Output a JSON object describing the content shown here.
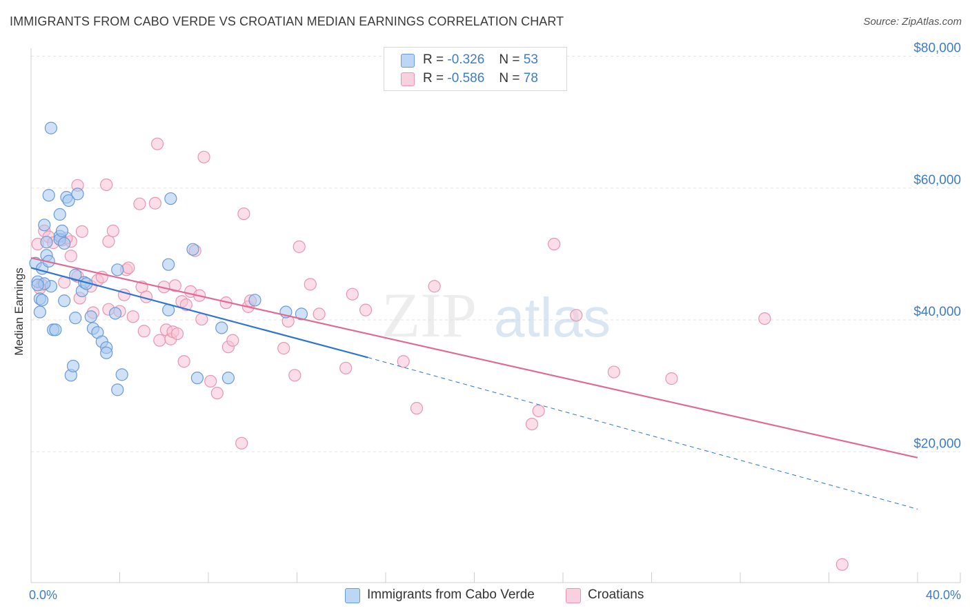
{
  "title": "IMMIGRANTS FROM CABO VERDE VS CROATIAN MEDIAN EARNINGS CORRELATION CHART",
  "source": "Source: ZipAtlas.com",
  "watermark": {
    "part1": "ZIP",
    "part2": "atlas"
  },
  "colors": {
    "blue_fill": "#a8c8f0",
    "blue_stroke": "#6a9ad8",
    "blue_line": "#2f74d0",
    "pink_fill": "#f7c3d4",
    "pink_stroke": "#e896b0",
    "pink_line": "#e06b92",
    "accent_text": "#3d7cc9",
    "grid": "#e3e3e3"
  },
  "legend": [
    {
      "r_label": "R =",
      "r_value": "-0.326",
      "n_label": "N =",
      "n_value": "53"
    },
    {
      "r_label": "R =",
      "r_value": "-0.586",
      "n_label": "N =",
      "n_value": "78"
    }
  ],
  "chart_data": {
    "type": "scatter",
    "title": "IMMIGRANTS FROM CABO VERDE VS CROATIAN MEDIAN EARNINGS CORRELATION CHART",
    "xlabel": "",
    "ylabel": "Median Earnings",
    "xlim": [
      0,
      40
    ],
    "ylim": [
      0,
      85000
    ],
    "x_tick_labels": [
      "0.0%",
      "40.0%"
    ],
    "y_ticks": [
      {
        "value": 20000,
        "label": "$20,000"
      },
      {
        "value": 40000,
        "label": "$40,000"
      },
      {
        "value": 60000,
        "label": "$60,000"
      },
      {
        "value": 80000,
        "label": "$80,000"
      }
    ],
    "grid": "horizontal dashed",
    "legend_position": "top-center",
    "series": [
      {
        "name": "Immigrants from Cabo Verde",
        "color": "blue",
        "r": -0.326,
        "n": 53,
        "trend": {
          "x0": 0,
          "y0": 47900,
          "x1": 15.2,
          "y1": 34300,
          "dashed_to_x": 40,
          "dashed_to_y": 11300
        },
        "points": [
          [
            0.2,
            48600
          ],
          [
            0.3,
            45800
          ],
          [
            0.4,
            43200
          ],
          [
            0.4,
            41200
          ],
          [
            0.5,
            43000
          ],
          [
            0.5,
            47800
          ],
          [
            0.6,
            54400
          ],
          [
            0.7,
            51800
          ],
          [
            0.7,
            49800
          ],
          [
            0.8,
            58900
          ],
          [
            0.8,
            48900
          ],
          [
            0.9,
            69100
          ],
          [
            0.9,
            45100
          ],
          [
            1.0,
            38500
          ],
          [
            1.1,
            38500
          ],
          [
            1.3,
            52700
          ],
          [
            1.3,
            56000
          ],
          [
            1.3,
            52200
          ],
          [
            1.4,
            53500
          ],
          [
            1.5,
            51600
          ],
          [
            1.5,
            42900
          ],
          [
            1.6,
            58600
          ],
          [
            1.7,
            58100
          ],
          [
            1.8,
            31600
          ],
          [
            1.9,
            33000
          ],
          [
            2.0,
            46800
          ],
          [
            2.0,
            40300
          ],
          [
            2.1,
            59100
          ],
          [
            2.3,
            44400
          ],
          [
            2.4,
            45700
          ],
          [
            2.5,
            45500
          ],
          [
            2.8,
            38700
          ],
          [
            3.0,
            38100
          ],
          [
            3.2,
            36700
          ],
          [
            3.4,
            35800
          ],
          [
            3.4,
            35000
          ],
          [
            3.8,
            41000
          ],
          [
            3.9,
            29400
          ],
          [
            3.9,
            47600
          ],
          [
            4.1,
            31700
          ],
          [
            6.2,
            41500
          ],
          [
            6.2,
            48400
          ],
          [
            6.3,
            58400
          ],
          [
            7.3,
            50700
          ],
          [
            7.5,
            31200
          ],
          [
            8.6,
            38800
          ],
          [
            8.9,
            31200
          ],
          [
            10.1,
            43000
          ],
          [
            11.5,
            41200
          ],
          [
            12.2,
            40900
          ],
          [
            0.6,
            45500
          ],
          [
            2.7,
            40500
          ],
          [
            0.3,
            45300
          ]
        ]
      },
      {
        "name": "Croatians",
        "color": "pink",
        "r": -0.586,
        "n": 78,
        "trend": {
          "x0": 0,
          "y0": 49400,
          "x1": 40,
          "y1": 19100
        },
        "points": [
          [
            0.3,
            51500
          ],
          [
            0.5,
            45300
          ],
          [
            0.6,
            53500
          ],
          [
            0.8,
            52600
          ],
          [
            1.0,
            51700
          ],
          [
            1.4,
            52100
          ],
          [
            1.5,
            45700
          ],
          [
            1.8,
            49700
          ],
          [
            1.8,
            51900
          ],
          [
            2.1,
            46600
          ],
          [
            2.1,
            60400
          ],
          [
            2.3,
            53400
          ],
          [
            2.7,
            45100
          ],
          [
            2.8,
            41100
          ],
          [
            3.0,
            46000
          ],
          [
            3.2,
            46500
          ],
          [
            3.4,
            60500
          ],
          [
            3.5,
            41600
          ],
          [
            3.5,
            51900
          ],
          [
            3.7,
            53500
          ],
          [
            4.0,
            41300
          ],
          [
            4.2,
            43800
          ],
          [
            4.3,
            47600
          ],
          [
            4.4,
            47900
          ],
          [
            4.6,
            40500
          ],
          [
            4.9,
            57600
          ],
          [
            5.0,
            45000
          ],
          [
            5.1,
            38300
          ],
          [
            5.2,
            43500
          ],
          [
            5.6,
            57700
          ],
          [
            5.7,
            66700
          ],
          [
            5.8,
            36900
          ],
          [
            6.0,
            45000
          ],
          [
            6.1,
            38500
          ],
          [
            6.3,
            37100
          ],
          [
            6.4,
            38200
          ],
          [
            6.6,
            37900
          ],
          [
            6.8,
            42800
          ],
          [
            6.9,
            33700
          ],
          [
            7.0,
            42300
          ],
          [
            7.2,
            44300
          ],
          [
            7.4,
            50500
          ],
          [
            7.6,
            43700
          ],
          [
            7.7,
            40100
          ],
          [
            7.8,
            64700
          ],
          [
            8.1,
            30700
          ],
          [
            8.4,
            28900
          ],
          [
            8.8,
            42600
          ],
          [
            8.9,
            35900
          ],
          [
            9.1,
            36900
          ],
          [
            9.5,
            21300
          ],
          [
            9.6,
            56100
          ],
          [
            9.8,
            42000
          ],
          [
            9.9,
            42900
          ],
          [
            11.4,
            35700
          ],
          [
            11.6,
            39800
          ],
          [
            11.9,
            31600
          ],
          [
            12.1,
            51100
          ],
          [
            12.6,
            45400
          ],
          [
            13.0,
            40900
          ],
          [
            14.2,
            32700
          ],
          [
            14.5,
            43900
          ],
          [
            15.1,
            41500
          ],
          [
            16.8,
            33700
          ],
          [
            17.4,
            26600
          ],
          [
            18.2,
            45100
          ],
          [
            22.6,
            24200
          ],
          [
            22.9,
            26200
          ],
          [
            23.6,
            51500
          ],
          [
            24.6,
            40700
          ],
          [
            26.3,
            32100
          ],
          [
            28.9,
            31100
          ],
          [
            33.1,
            40200
          ],
          [
            36.6,
            2900
          ],
          [
            0.4,
            44800
          ],
          [
            1.6,
            52400
          ],
          [
            2.2,
            43300
          ],
          [
            6.5,
            45200
          ]
        ]
      }
    ]
  },
  "bottom_legend": [
    {
      "label": "Immigrants from Cabo Verde"
    },
    {
      "label": "Croatians"
    }
  ]
}
